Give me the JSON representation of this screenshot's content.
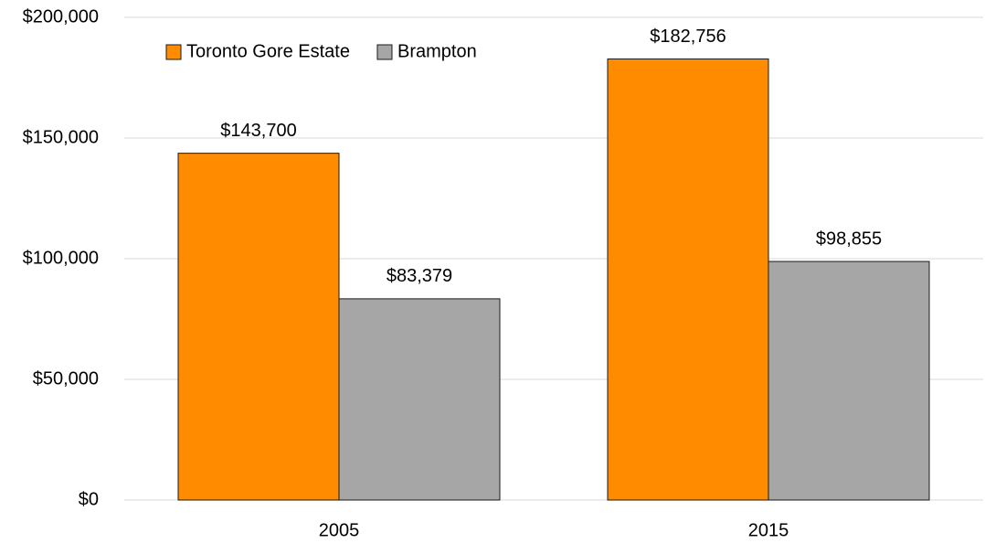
{
  "chart_data": {
    "type": "bar",
    "categories": [
      "2005",
      "2015"
    ],
    "series": [
      {
        "name": "Toronto Gore Estate",
        "color": "#ff8c00",
        "values": [
          143700,
          182756
        ],
        "value_labels": [
          "$143,700",
          "$182,756"
        ]
      },
      {
        "name": "Brampton",
        "color": "#a6a6a6",
        "values": [
          83379,
          98855
        ],
        "value_labels": [
          "$83,379",
          "$98,855"
        ]
      }
    ],
    "ylim": [
      0,
      200000
    ],
    "yticks": [
      {
        "value": 0,
        "label": "$0"
      },
      {
        "value": 50000,
        "label": "$50,000"
      },
      {
        "value": 100000,
        "label": "$100,000"
      },
      {
        "value": 150000,
        "label": "$150,000"
      },
      {
        "value": 200000,
        "label": "$200,000"
      }
    ],
    "grid": true,
    "legend": "top-left"
  }
}
